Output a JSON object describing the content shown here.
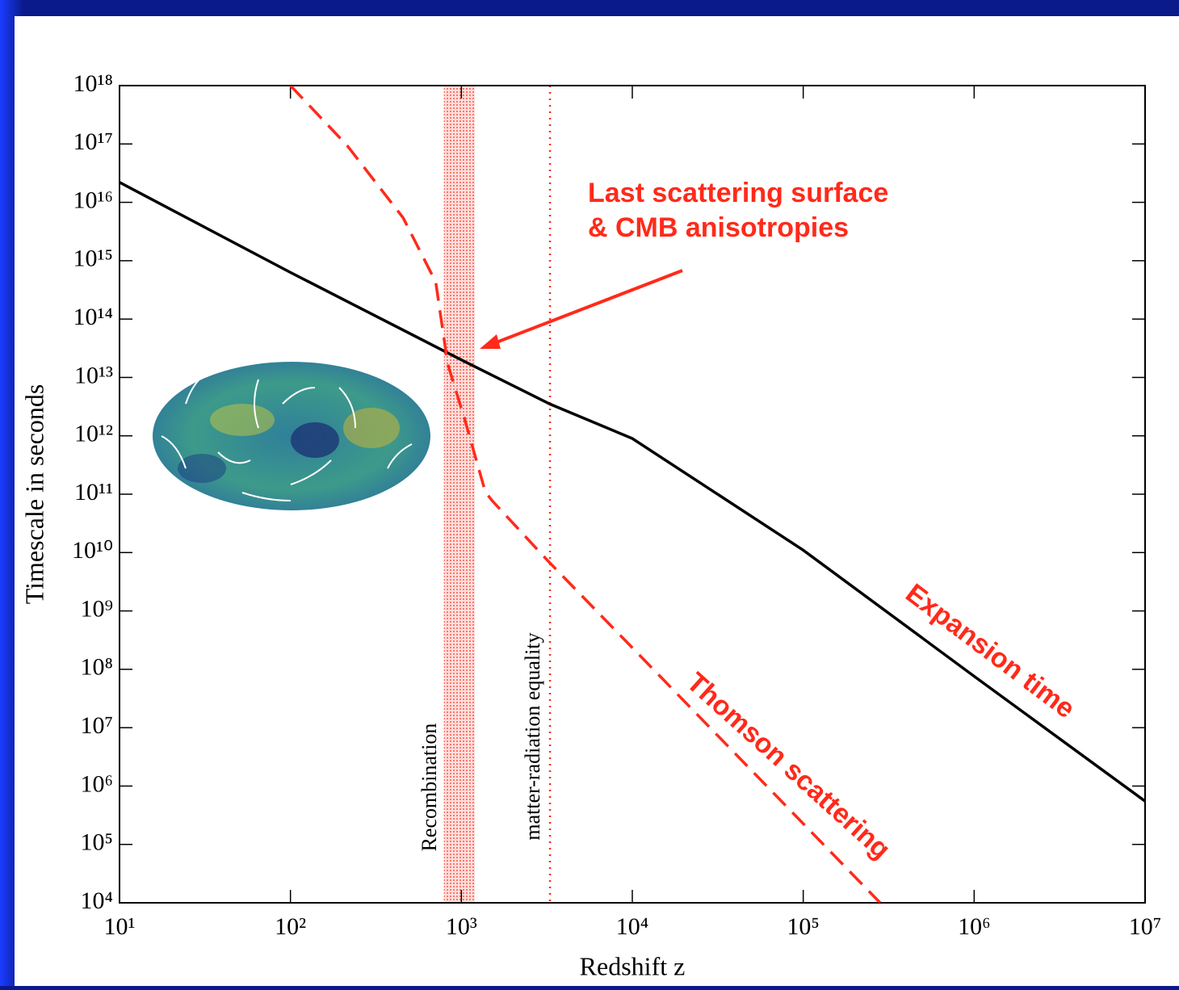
{
  "chart_data": {
    "type": "line",
    "xlabel": "Redshift z",
    "ylabel": "Timescale in seconds",
    "xscale": "log",
    "yscale": "log",
    "xlim": [
      10,
      10000000
    ],
    "ylim": [
      10000,
      1e+18
    ],
    "xticks": [
      {
        "value": 10,
        "label": "10¹"
      },
      {
        "value": 100,
        "label": "10²"
      },
      {
        "value": 1000,
        "label": "10³"
      },
      {
        "value": 10000,
        "label": "10⁴"
      },
      {
        "value": 100000,
        "label": "10⁵"
      },
      {
        "value": 1000000,
        "label": "10⁶"
      },
      {
        "value": 10000000,
        "label": "10⁷"
      }
    ],
    "yticks": [
      {
        "value": 10000,
        "label": "10⁴"
      },
      {
        "value": 100000,
        "label": "10⁵"
      },
      {
        "value": 1000000,
        "label": "10⁶"
      },
      {
        "value": 10000000,
        "label": "10⁷"
      },
      {
        "value": 100000000,
        "label": "10⁸"
      },
      {
        "value": 1000000000,
        "label": "10⁹"
      },
      {
        "value": 10000000000.0,
        "label": "10¹⁰"
      },
      {
        "value": 100000000000.0,
        "label": "10¹¹"
      },
      {
        "value": 1000000000000.0,
        "label": "10¹²"
      },
      {
        "value": 10000000000000.0,
        "label": "10¹³"
      },
      {
        "value": 100000000000000.0,
        "label": "10¹⁴"
      },
      {
        "value": 1000000000000000.0,
        "label": "10¹⁵"
      },
      {
        "value": 1e+16,
        "label": "10¹⁶"
      },
      {
        "value": 1e+17,
        "label": "10¹⁷"
      },
      {
        "value": 1e+18,
        "label": "10¹⁸"
      }
    ],
    "series": [
      {
        "name": "Expansion time",
        "color": "#000000",
        "style": "solid",
        "x": [
          10,
          100,
          1000,
          3300,
          10000,
          100000,
          1000000,
          10000000
        ],
        "values": [
          2.2e+16,
          630000000000000.0,
          20000000000000.0,
          3500000000000.0,
          900000000000.0,
          11000000000.0,
          76000000.0,
          550000.0
        ]
      },
      {
        "name": "Thomson scattering",
        "color": "#ff2a1a",
        "style": "dashed",
        "x": [
          100,
          214,
          457,
          708,
          832,
          1047,
          1380,
          1510,
          3240,
          281800
        ],
        "values": [
          1e+18,
          9.5e+16,
          5400000000000000.0,
          430000000000000.0,
          17000000000000.0,
          1900000000000.0,
          110000000000.0,
          78000000000.0,
          7000000000.0,
          10000
        ]
      }
    ],
    "recombination": {
      "label": "Recombination",
      "zrange": [
        790,
        1200
      ],
      "color": "#ff2a1a"
    },
    "equality": {
      "label": "matter-radiation equality",
      "z": 3300,
      "color": "#ff2a1a"
    },
    "annotation": {
      "lines": [
        "Last scattering surface",
        "& CMB anisotropies"
      ],
      "color": "#ff2a1a"
    }
  }
}
